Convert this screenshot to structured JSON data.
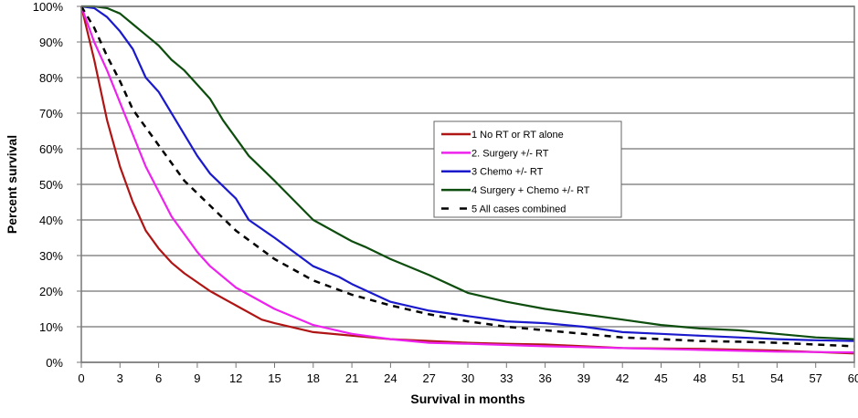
{
  "chart_data": {
    "type": "line",
    "title": "",
    "xlabel": "Survival in months",
    "ylabel": "Percent survival",
    "xlim": [
      0,
      60
    ],
    "ylim": [
      0,
      100
    ],
    "x_ticks": [
      "0",
      "3",
      "6",
      "9",
      "12",
      "15",
      "18",
      "21",
      "24",
      "27",
      "30",
      "33",
      "36",
      "39",
      "42",
      "45",
      "48",
      "51",
      "54",
      "57",
      "60"
    ],
    "y_ticks": [
      "0%",
      "10%",
      "20%",
      "30%",
      "40%",
      "50%",
      "60%",
      "70%",
      "80%",
      "90%",
      "100%"
    ],
    "grid": "horizontal",
    "legend_position": "center-right",
    "series": [
      {
        "name": "1 No RT or RT alone",
        "color": "#b01515",
        "dash": false,
        "points": [
          [
            0,
            100
          ],
          [
            1,
            85
          ],
          [
            2,
            68
          ],
          [
            3,
            55
          ],
          [
            4,
            45
          ],
          [
            5,
            37
          ],
          [
            6,
            32
          ],
          [
            7,
            28
          ],
          [
            8,
            25
          ],
          [
            10,
            20
          ],
          [
            12,
            16
          ],
          [
            14,
            12
          ],
          [
            15,
            11
          ],
          [
            18,
            8.5
          ],
          [
            21,
            7.5
          ],
          [
            24,
            6.5
          ],
          [
            27,
            6
          ],
          [
            30,
            5.5
          ],
          [
            33,
            5.2
          ],
          [
            36,
            5
          ],
          [
            39,
            4.5
          ],
          [
            42,
            4
          ],
          [
            48,
            3.8
          ],
          [
            54,
            3.3
          ],
          [
            60,
            2.5
          ]
        ]
      },
      {
        "name": "2. Surgery +/- RT",
        "color": "#ee22ee",
        "dash": false,
        "points": [
          [
            0,
            100
          ],
          [
            1,
            90
          ],
          [
            2,
            82
          ],
          [
            3,
            73
          ],
          [
            4,
            64
          ],
          [
            5,
            55
          ],
          [
            6,
            48
          ],
          [
            7,
            41
          ],
          [
            8,
            36
          ],
          [
            9,
            31
          ],
          [
            10,
            27
          ],
          [
            12,
            21
          ],
          [
            15,
            15
          ],
          [
            18,
            10.5
          ],
          [
            21,
            8
          ],
          [
            24,
            6.5
          ],
          [
            27,
            5.5
          ],
          [
            30,
            5.2
          ],
          [
            36,
            4.5
          ],
          [
            42,
            4
          ],
          [
            48,
            3.5
          ],
          [
            54,
            3
          ],
          [
            60,
            2.8
          ]
        ]
      },
      {
        "name": "3 Chemo +/- RT",
        "color": "#1a1acc",
        "dash": false,
        "points": [
          [
            0,
            100
          ],
          [
            1,
            99.5
          ],
          [
            2,
            97
          ],
          [
            3,
            93
          ],
          [
            4,
            88
          ],
          [
            5,
            80
          ],
          [
            6,
            76
          ],
          [
            7,
            70
          ],
          [
            8,
            64
          ],
          [
            9,
            58
          ],
          [
            10,
            53
          ],
          [
            11,
            49.5
          ],
          [
            12,
            46
          ],
          [
            13,
            40
          ],
          [
            15,
            35
          ],
          [
            18,
            27
          ],
          [
            20,
            24
          ],
          [
            21,
            22
          ],
          [
            24,
            17
          ],
          [
            27,
            14.5
          ],
          [
            30,
            13
          ],
          [
            33,
            11.5
          ],
          [
            36,
            11
          ],
          [
            39,
            10
          ],
          [
            42,
            8.5
          ],
          [
            45,
            8
          ],
          [
            48,
            7.5
          ],
          [
            51,
            7
          ],
          [
            54,
            6.5
          ],
          [
            57,
            6.2
          ],
          [
            60,
            6
          ]
        ]
      },
      {
        "name": "4 Surgery + Chemo +/- RT",
        "color": "#0d4d0d",
        "dash": false,
        "points": [
          [
            0,
            100
          ],
          [
            1,
            100
          ],
          [
            2,
            99.5
          ],
          [
            3,
            98
          ],
          [
            4,
            95
          ],
          [
            5,
            92
          ],
          [
            6,
            89
          ],
          [
            7,
            85
          ],
          [
            8,
            82
          ],
          [
            9,
            78
          ],
          [
            10,
            74
          ],
          [
            11,
            68
          ],
          [
            12,
            63
          ],
          [
            13,
            58
          ],
          [
            15,
            51
          ],
          [
            18,
            40
          ],
          [
            21,
            34
          ],
          [
            22,
            32.5
          ],
          [
            24,
            29
          ],
          [
            27,
            24.5
          ],
          [
            30,
            19.5
          ],
          [
            33,
            17
          ],
          [
            36,
            15
          ],
          [
            39,
            13.5
          ],
          [
            42,
            12
          ],
          [
            45,
            10.5
          ],
          [
            48,
            9.5
          ],
          [
            51,
            9
          ],
          [
            54,
            8
          ],
          [
            57,
            7
          ],
          [
            60,
            6.5
          ]
        ]
      },
      {
        "name": "5 All cases combined",
        "color": "#000000",
        "dash": true,
        "points": [
          [
            0,
            100
          ],
          [
            1,
            94
          ],
          [
            2,
            86
          ],
          [
            3,
            79
          ],
          [
            4,
            71
          ],
          [
            5,
            66
          ],
          [
            6,
            61
          ],
          [
            8,
            51
          ],
          [
            10,
            44
          ],
          [
            12,
            37
          ],
          [
            15,
            29
          ],
          [
            18,
            23
          ],
          [
            21,
            19
          ],
          [
            24,
            16
          ],
          [
            27,
            13.5
          ],
          [
            30,
            11.5
          ],
          [
            33,
            10
          ],
          [
            36,
            9
          ],
          [
            39,
            8
          ],
          [
            42,
            7
          ],
          [
            45,
            6.5
          ],
          [
            48,
            6
          ],
          [
            51,
            5.8
          ],
          [
            54,
            5.5
          ],
          [
            57,
            5
          ],
          [
            60,
            4.5
          ]
        ]
      }
    ]
  }
}
